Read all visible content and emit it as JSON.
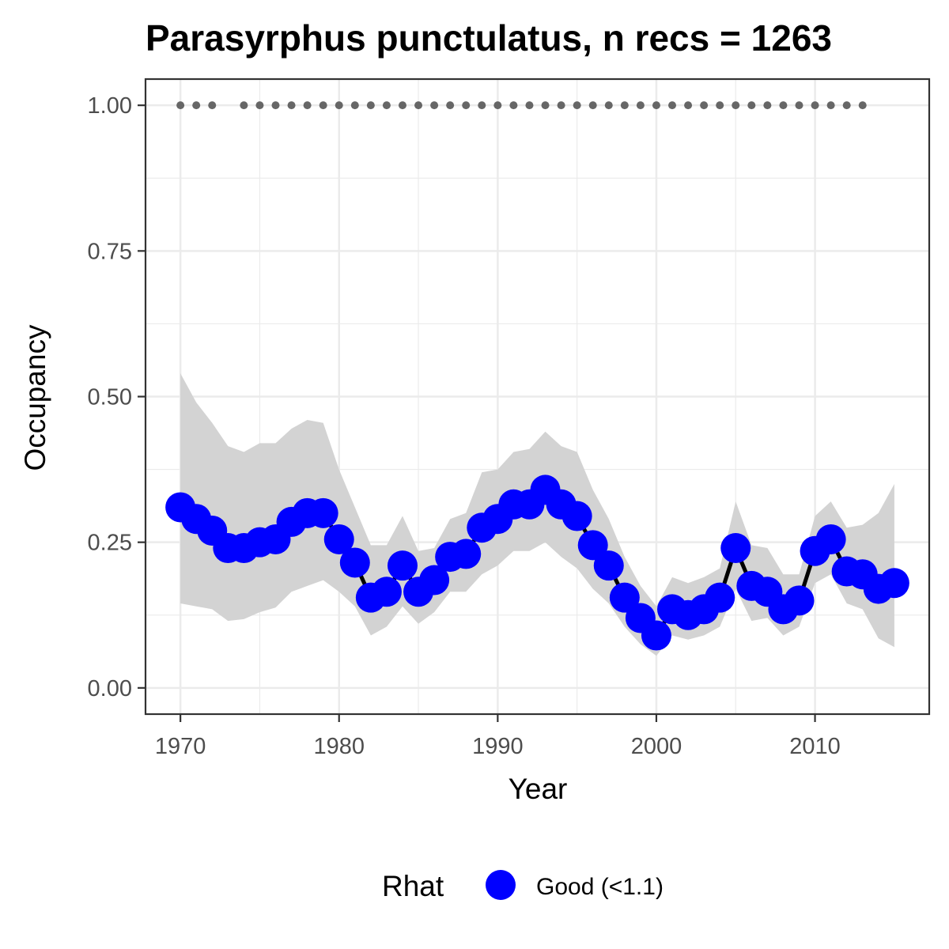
{
  "chart_data": {
    "type": "line",
    "title": "Parasyrphus punctulatus, n recs = 1263",
    "xlabel": "Year",
    "ylabel": "Occupancy",
    "xlim": [
      1967.8,
      2017.2
    ],
    "ylim": [
      -0.045,
      1.045
    ],
    "x_ticks": [
      1970,
      1980,
      1990,
      2000,
      2010
    ],
    "y_ticks": [
      0.0,
      0.25,
      0.5,
      0.75,
      1.0
    ],
    "y_tick_labels": [
      "0.00",
      "0.25",
      "0.50",
      "0.75",
      "1.00"
    ],
    "grid": true,
    "legend": {
      "title": "Rhat",
      "position": "bottom",
      "entries": [
        {
          "label": "Good (<1.1)",
          "color": "#0000ff"
        }
      ]
    },
    "colors": {
      "points": "#0000ff",
      "line": "#000000",
      "ribbon": "#d3d3d3",
      "record_dots": "#666666",
      "grid": "#ebebeb",
      "panel_border": "#333333"
    },
    "series": [
      {
        "x": [
          1970,
          1971,
          1972,
          1973,
          1974,
          1975,
          1976,
          1977,
          1978,
          1979,
          1980,
          1981,
          1982,
          1983,
          1984,
          1985,
          1986,
          1987,
          1988,
          1989,
          1990,
          1991,
          1992,
          1993,
          1994,
          1995,
          1996,
          1997,
          1998,
          1999,
          2000,
          2001,
          2002,
          2003,
          2004,
          2005,
          2006,
          2007,
          2008,
          2009,
          2010,
          2011,
          2012,
          2013,
          2014,
          2015
        ],
        "y": [
          0.31,
          0.29,
          0.27,
          0.24,
          0.24,
          0.25,
          0.255,
          0.285,
          0.3,
          0.3,
          0.255,
          0.215,
          0.155,
          0.165,
          0.21,
          0.165,
          0.185,
          0.225,
          0.23,
          0.275,
          0.29,
          0.315,
          0.315,
          0.34,
          0.315,
          0.295,
          0.245,
          0.21,
          0.155,
          0.12,
          0.09,
          0.135,
          0.125,
          0.135,
          0.155,
          0.24,
          0.175,
          0.165,
          0.135,
          0.15,
          0.235,
          0.255,
          0.2,
          0.195,
          0.17,
          0.18
        ],
        "lower": [
          0.145,
          0.14,
          0.135,
          0.115,
          0.118,
          0.13,
          0.138,
          0.165,
          0.175,
          0.185,
          0.165,
          0.14,
          0.09,
          0.105,
          0.14,
          0.11,
          0.13,
          0.165,
          0.165,
          0.195,
          0.21,
          0.235,
          0.235,
          0.25,
          0.225,
          0.205,
          0.17,
          0.145,
          0.105,
          0.075,
          0.055,
          0.09,
          0.083,
          0.09,
          0.105,
          0.17,
          0.115,
          0.12,
          0.09,
          0.105,
          0.18,
          0.195,
          0.145,
          0.135,
          0.085,
          0.07
        ],
        "upper": [
          0.54,
          0.49,
          0.455,
          0.415,
          0.405,
          0.42,
          0.42,
          0.445,
          0.46,
          0.455,
          0.375,
          0.31,
          0.245,
          0.245,
          0.295,
          0.235,
          0.24,
          0.29,
          0.3,
          0.37,
          0.375,
          0.405,
          0.41,
          0.44,
          0.415,
          0.405,
          0.34,
          0.29,
          0.225,
          0.175,
          0.14,
          0.19,
          0.18,
          0.19,
          0.205,
          0.32,
          0.245,
          0.24,
          0.195,
          0.195,
          0.295,
          0.32,
          0.275,
          0.28,
          0.3,
          0.35
        ]
      }
    ],
    "record_years": [
      1970,
      1971,
      1972,
      1974,
      1975,
      1976,
      1977,
      1978,
      1979,
      1980,
      1981,
      1982,
      1983,
      1984,
      1985,
      1986,
      1987,
      1988,
      1989,
      1990,
      1991,
      1992,
      1993,
      1994,
      1995,
      1996,
      1997,
      1998,
      1999,
      2000,
      2001,
      2002,
      2003,
      2004,
      2005,
      2006,
      2007,
      2008,
      2009,
      2010,
      2011,
      2012,
      2013
    ],
    "record_y": 1.0
  }
}
